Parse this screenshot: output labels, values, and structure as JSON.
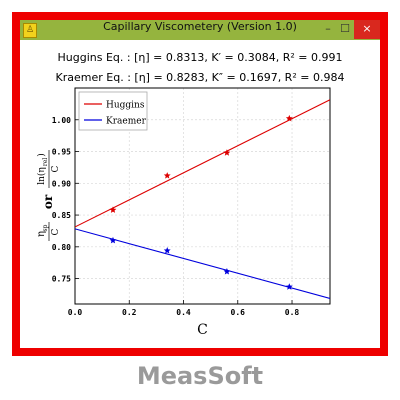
{
  "window": {
    "title": "Capillary Viscometery  (Version 1.0)",
    "icon": "app-logo-icon",
    "minimize_glyph": "–",
    "maximize_glyph": "☐",
    "close_glyph": "×"
  },
  "equations": {
    "huggins": "Huggins Eq. : [η] = 0.8313,  K′ = 0.3084,  R² = 0.991",
    "kraemer": "Kraemer Eq. : [η] = 0.8283,  K″ = 0.1697,  R² = 0.984"
  },
  "chart_data": {
    "type": "scatter",
    "xlabel": "C",
    "ylabel_parts": [
      "η",
      "sp",
      "C",
      "or",
      "ln(η",
      "rel",
      ")",
      "C"
    ],
    "xlim": [
      0.0,
      0.94
    ],
    "ylim": [
      0.71,
      1.05
    ],
    "xticks": [
      "0.0",
      "0.2",
      "0.4",
      "0.6",
      "0.8"
    ],
    "yticks": [
      "0.75",
      "0.80",
      "0.85",
      "0.90",
      "0.95",
      "1.00"
    ],
    "grid": true,
    "legend_position": "top-left",
    "series": [
      {
        "name": "Huggins",
        "color": "#dd0000",
        "marker": "star",
        "x": [
          0.14,
          0.34,
          0.56,
          0.79
        ],
        "y": [
          0.858,
          0.912,
          0.948,
          1.002
        ],
        "fit": {
          "intercept": 0.8313,
          "slope": 0.213
        }
      },
      {
        "name": "Kraemer",
        "color": "#0000dd",
        "marker": "star",
        "x": [
          0.14,
          0.34,
          0.56,
          0.79
        ],
        "y": [
          0.81,
          0.794,
          0.761,
          0.737
        ],
        "fit": {
          "intercept": 0.8283,
          "slope": -0.1165
        }
      }
    ]
  },
  "footer": {
    "brand": "MeasSoft"
  },
  "colors": {
    "frame": "#ee0000",
    "titlebar": "#95b43e",
    "close": "#d9281e",
    "brand_text": "#9a9a9a"
  }
}
